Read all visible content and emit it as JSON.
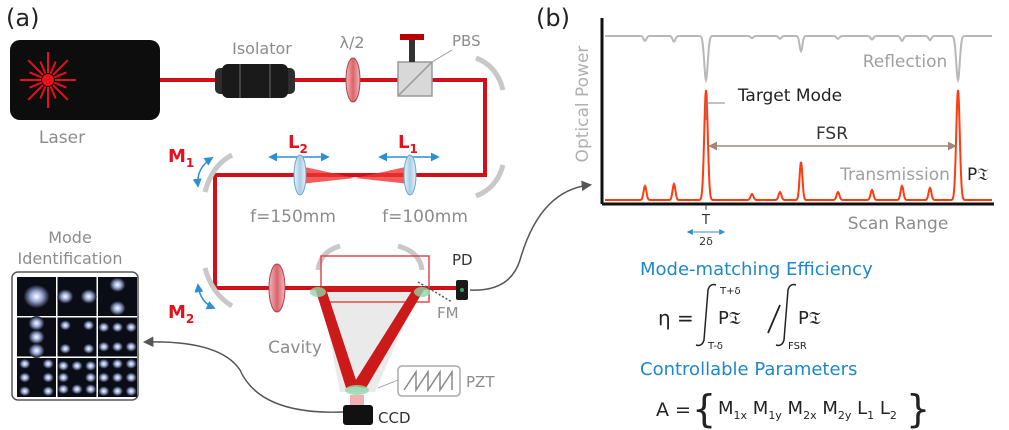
{
  "panel_a": {
    "label": "(a)",
    "laser": "Laser",
    "isolator": "Isolator",
    "half_wave": "λ/2",
    "pbs": "PBS",
    "m1": {
      "base": "M",
      "sub": "1"
    },
    "m2": {
      "base": "M",
      "sub": "2"
    },
    "l1": {
      "base": "L",
      "sub": "1"
    },
    "l2": {
      "base": "L",
      "sub": "2"
    },
    "f_l2": "f=150mm",
    "f_l1": "f=100mm",
    "cavity": "Cavity",
    "pd": "PD",
    "fm": "FM",
    "pzt": "PZT",
    "ccd": "CCD",
    "mode_id_line1": "Mode",
    "mode_id_line2": "Identification"
  },
  "panel_b": {
    "label": "(b)",
    "y_axis": "Optical Power",
    "x_axis": "Scan Range",
    "reflection": "Reflection",
    "transmission": "Transmission",
    "target_mode": "Target Mode",
    "fsr": "FSR",
    "p_t": "P𝔗",
    "tick_t": "T",
    "tick_2delta": "2δ",
    "colors": {
      "transmission": "#ff3b10",
      "reflection": "#b8b8b8",
      "formula": "#1e88c7"
    }
  },
  "formulas": {
    "efficiency_title": "Mode-matching Efficiency",
    "eta": "η =",
    "int1_upper": "T+δ",
    "int1_lower": "T-δ",
    "int1_body": "P𝔗",
    "int2_lower": "FSR",
    "int2_body": "P𝔗",
    "params_title": "Controllable Parameters",
    "a_eq": "A =",
    "params": [
      "M",
      "1x",
      " M",
      "1y",
      " M",
      "2x",
      " M",
      "2y",
      " L",
      "1",
      " L",
      "2"
    ]
  }
}
